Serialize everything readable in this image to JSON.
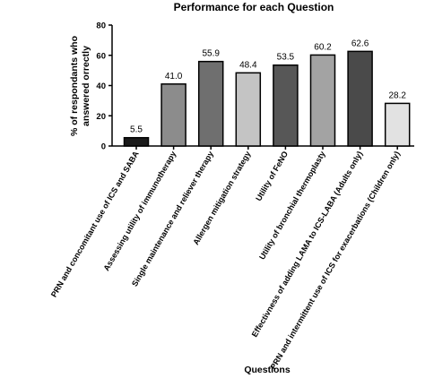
{
  "chart_data": {
    "type": "bar",
    "title": "Performance for each Question",
    "xlabel": "Questions",
    "ylabel_lines": [
      "% of respondants who",
      "answered orrectly"
    ],
    "ylim": [
      0,
      80
    ],
    "yticks": [
      0,
      20,
      40,
      60,
      80
    ],
    "categories": [
      "PRN and concomitant use of ICS and SABA",
      "Assessing utility of immunotherapy",
      "Single maintenance and reliever therapy",
      "Allergen mitigation strategy",
      "Utility of FeNO",
      "Utility of bronchial thermoplasty",
      "Effectivness of adding LAMA to ICS-LABA (Adults only)",
      "PRN and intermittent use of ICS for exacerbations (Children only)"
    ],
    "values": [
      5.5,
      41.0,
      55.9,
      48.4,
      53.5,
      60.2,
      62.6,
      28.2
    ],
    "value_labels": [
      "5.5",
      "41.0",
      "55.9",
      "48.4",
      "53.5",
      "60.2",
      "62.6",
      "28.2"
    ],
    "bar_colors": [
      "#1a1a1a",
      "#8c8c8c",
      "#6f6f6f",
      "#c4c4c4",
      "#575757",
      "#a3a3a3",
      "#4a4a4a",
      "#e2e2e2"
    ],
    "grid": false,
    "legend": "none"
  }
}
